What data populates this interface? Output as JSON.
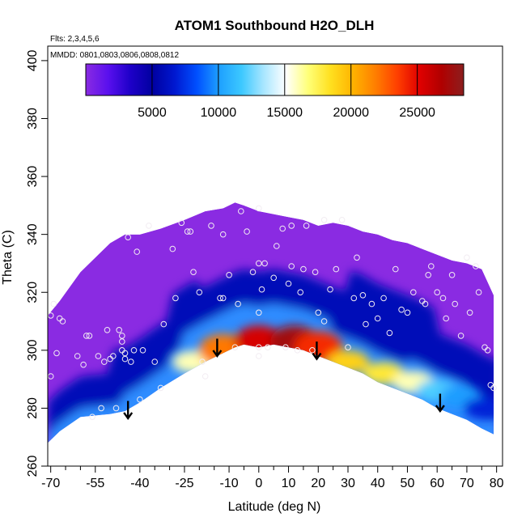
{
  "chart_data": {
    "type": "heatmap",
    "title": "ATOM1 Southbound H2O_DLH",
    "notes": [
      "Flts: 2,3,4,5,6",
      "MMDD: 0801,0803,0806,0808,0812"
    ],
    "xlabel": "Latitude (deg N)",
    "ylabel": "Theta (C)",
    "xlim": [
      -71,
      82
    ],
    "ylim": [
      260,
      405
    ],
    "xticks": [
      -70,
      -55,
      -40,
      -25,
      -10,
      0,
      10,
      20,
      30,
      40,
      50,
      60,
      70,
      80
    ],
    "xtick_labels": [
      "-70",
      "-55",
      "-40",
      "-25",
      "-10",
      "0",
      "10",
      "20",
      "30",
      "40",
      "50",
      "60",
      "70",
      "80"
    ],
    "xminor": [
      -65,
      -60,
      -50,
      -45,
      -35,
      -30,
      -20,
      -15,
      -5,
      5,
      15,
      25,
      35,
      45,
      55,
      65,
      75
    ],
    "yticks": [
      260,
      280,
      300,
      320,
      340,
      360,
      380,
      400
    ],
    "ytick_labels": [
      "260",
      "280",
      "300",
      "320",
      "340",
      "360",
      "380",
      "400"
    ],
    "colorbar": {
      "range": [
        0,
        28500
      ],
      "ticks": [
        5000,
        10000,
        15000,
        20000,
        25000
      ],
      "tick_labels": [
        "5000",
        "10000",
        "15000",
        "20000",
        "25000"
      ],
      "colors": [
        "#8a2be2",
        "#5a10ee",
        "#1e00c8",
        "#0000a0",
        "#0018d0",
        "#0050ff",
        "#1ea0ff",
        "#3cc8ff",
        "#a8e6ff",
        "#ffffff",
        "#ffff78",
        "#ffe020",
        "#ffb400",
        "#ff8000",
        "#ff4000",
        "#e00000",
        "#b00000",
        "#8c1e1e"
      ]
    },
    "domain": {
      "lat": [
        -71,
        -67,
        -60,
        -50,
        -45,
        -40,
        -33,
        -25,
        -18,
        -12,
        -8,
        -5,
        0,
        5,
        10,
        15,
        20,
        25,
        30,
        35,
        40,
        45,
        50,
        55,
        60,
        65,
        70,
        75,
        79
      ],
      "bottom": [
        268,
        272,
        277,
        278,
        279,
        282,
        287,
        292,
        296,
        299,
        301,
        302,
        301,
        302,
        301,
        300,
        298,
        296,
        294,
        292,
        289,
        287,
        285,
        283,
        280,
        278,
        276,
        273,
        271
      ],
      "top": [
        312,
        317,
        327,
        337,
        340,
        340,
        342,
        345,
        348,
        349,
        351,
        350,
        348,
        347,
        346,
        345,
        343,
        344,
        343,
        341,
        340,
        338,
        337,
        335,
        333,
        331,
        330,
        328,
        319
      ]
    },
    "core": [
      {
        "lat": -22,
        "theta": 296,
        "value": 16000
      },
      {
        "lat": -12,
        "theta": 300,
        "value": 22000
      },
      {
        "lat": 0,
        "theta": 303,
        "value": 25500
      },
      {
        "lat": 12,
        "theta": 303,
        "value": 27500
      },
      {
        "lat": 20,
        "theta": 301,
        "value": 24000
      },
      {
        "lat": 30,
        "theta": 296,
        "value": 19000
      },
      {
        "lat": 42,
        "theta": 292,
        "value": 18000
      },
      {
        "lat": 52,
        "theta": 289,
        "value": 16000
      },
      {
        "lat": 60,
        "theta": 286,
        "value": 12000
      },
      {
        "lat": 68,
        "theta": 284,
        "value": 10000
      },
      {
        "lat": 76,
        "theta": 280,
        "value": 7000
      }
    ],
    "arrows": [
      {
        "lat": -44,
        "theta_from": 282.5,
        "theta_to": 276.5
      },
      {
        "lat": -14,
        "theta_from": 304,
        "theta_to": 298
      },
      {
        "lat": 19.5,
        "theta_from": 303,
        "theta_to": 297
      },
      {
        "lat": 61,
        "theta_from": 285,
        "theta_to": 279
      }
    ],
    "points": [
      [
        -70,
        291
      ],
      [
        -70,
        312
      ],
      [
        -69,
        316
      ],
      [
        -68,
        299
      ],
      [
        -67,
        311
      ],
      [
        -66,
        310
      ],
      [
        -61,
        298
      ],
      [
        -59,
        295
      ],
      [
        -58,
        305
      ],
      [
        -57,
        305
      ],
      [
        -56,
        277
      ],
      [
        -54,
        298
      ],
      [
        -53,
        280
      ],
      [
        -52,
        296
      ],
      [
        -51,
        307
      ],
      [
        -50,
        297
      ],
      [
        -49,
        298
      ],
      [
        -48,
        280
      ],
      [
        -47,
        307
      ],
      [
        -46,
        300
      ],
      [
        -46,
        303
      ],
      [
        -46,
        305
      ],
      [
        -45,
        297
      ],
      [
        -45,
        299
      ],
      [
        -44,
        339
      ],
      [
        -43,
        296
      ],
      [
        -42,
        300
      ],
      [
        -41,
        334
      ],
      [
        -40,
        283
      ],
      [
        -39,
        300
      ],
      [
        -37,
        343
      ],
      [
        -35,
        296
      ],
      [
        -33,
        287
      ],
      [
        -32,
        309
      ],
      [
        -29,
        335
      ],
      [
        -28,
        318
      ],
      [
        -26,
        344
      ],
      [
        -24,
        341
      ],
      [
        -23,
        341
      ],
      [
        -22,
        327
      ],
      [
        -20,
        320
      ],
      [
        -19,
        296
      ],
      [
        -18,
        291
      ],
      [
        -16,
        343
      ],
      [
        -13,
        318
      ],
      [
        -12,
        318
      ],
      [
        -12,
        340
      ],
      [
        -10,
        326
      ],
      [
        -8,
        301
      ],
      [
        -7,
        316
      ],
      [
        -6,
        348
      ],
      [
        -4,
        341
      ],
      [
        -2,
        327
      ],
      [
        0,
        301
      ],
      [
        0,
        298
      ],
      [
        0,
        313
      ],
      [
        0,
        330
      ],
      [
        0,
        349
      ],
      [
        1,
        321
      ],
      [
        2,
        330
      ],
      [
        3,
        301
      ],
      [
        5,
        325
      ],
      [
        6,
        336
      ],
      [
        8,
        342
      ],
      [
        9,
        301
      ],
      [
        10,
        323
      ],
      [
        11,
        329
      ],
      [
        11,
        343
      ],
      [
        13,
        300
      ],
      [
        14,
        320
      ],
      [
        15,
        328
      ],
      [
        16,
        343
      ],
      [
        18,
        300
      ],
      [
        19,
        327
      ],
      [
        20,
        313
      ],
      [
        22,
        310
      ],
      [
        22,
        345
      ],
      [
        24,
        321
      ],
      [
        26,
        328
      ],
      [
        28,
        345
      ],
      [
        30,
        301
      ],
      [
        32,
        318
      ],
      [
        33,
        332
      ],
      [
        35,
        319
      ],
      [
        36,
        309
      ],
      [
        38,
        316
      ],
      [
        40,
        311
      ],
      [
        42,
        318
      ],
      [
        44,
        306
      ],
      [
        46,
        328
      ],
      [
        48,
        314
      ],
      [
        50,
        313
      ],
      [
        52,
        320
      ],
      [
        55,
        317
      ],
      [
        56,
        316
      ],
      [
        57,
        326
      ],
      [
        58,
        329
      ],
      [
        60,
        320
      ],
      [
        62,
        318
      ],
      [
        63,
        311
      ],
      [
        65,
        326
      ],
      [
        66,
        316
      ],
      [
        68,
        305
      ],
      [
        70,
        332
      ],
      [
        71,
        313
      ],
      [
        73,
        329
      ],
      [
        74,
        320
      ],
      [
        76,
        301
      ],
      [
        77,
        300
      ],
      [
        78,
        288
      ],
      [
        79,
        287
      ]
    ]
  }
}
